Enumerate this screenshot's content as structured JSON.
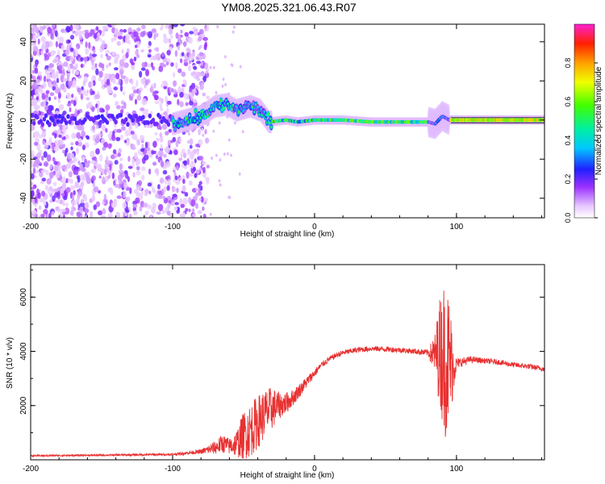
{
  "title": "YM08.2025.321.06.43.R07",
  "colors": {
    "snr_line": "#e83030",
    "axis": "#000000",
    "scatter": "#7d2ef0"
  },
  "chart_data": [
    {
      "type": "heatmap",
      "title": "YM08.2025.321.06.43.R07",
      "xlabel": "Height of straight line (km)",
      "ylabel": "Frequency (Hz)",
      "xlim": [
        -200,
        162
      ],
      "ylim": [
        -50,
        49
      ],
      "xticks": [
        -200,
        -100,
        0,
        100
      ],
      "xtick_labels": [
        "-200",
        "-100",
        "0",
        "100"
      ],
      "yticks": [
        -40,
        -20,
        0,
        20,
        40
      ],
      "ytick_labels": [
        "-40",
        "-20",
        "0",
        "20",
        "40"
      ],
      "colorbar": {
        "label": "Normalized spectral amplitude",
        "range": [
          0,
          1
        ],
        "ticks": [
          0.0,
          0.2,
          0.4,
          0.6,
          0.8
        ],
        "tick_labels": [
          "0.0",
          "0.2",
          "0.4",
          "0.6",
          "0.8"
        ]
      },
      "ridge": [
        {
          "x": -100,
          "f": -2
        },
        {
          "x": -90,
          "f": 0
        },
        {
          "x": -80,
          "f": 2
        },
        {
          "x": -70,
          "f": 7
        },
        {
          "x": -62,
          "f": 8
        },
        {
          "x": -55,
          "f": 5
        },
        {
          "x": -45,
          "f": 7
        },
        {
          "x": -38,
          "f": 5
        },
        {
          "x": -32,
          "f": -1
        },
        {
          "x": -20,
          "f": 0
        },
        {
          "x": -12,
          "f": -1
        },
        {
          "x": 0,
          "f": 0
        },
        {
          "x": 20,
          "f": 0
        },
        {
          "x": 40,
          "f": -1
        },
        {
          "x": 60,
          "f": -1
        },
        {
          "x": 80,
          "f": -1
        },
        {
          "x": 85,
          "f": -2
        },
        {
          "x": 90,
          "f": 2
        },
        {
          "x": 95,
          "f": 0
        },
        {
          "x": 120,
          "f": 0
        },
        {
          "x": 162,
          "f": 0
        }
      ]
    },
    {
      "type": "line",
      "xlabel": "Height of straight line (km)",
      "ylabel": "SNR (10 * v/v)",
      "xlim": [
        -200,
        162
      ],
      "ylim": [
        0,
        7200
      ],
      "xticks": [
        -200,
        -100,
        0,
        100
      ],
      "xtick_labels": [
        "-200",
        "-100",
        "0",
        "100"
      ],
      "yticks": [
        2000,
        4000,
        6000
      ],
      "ytick_labels": [
        "2000",
        "4000",
        "6000"
      ],
      "series": [
        {
          "name": "SNR",
          "x": [
            -200,
            -150,
            -100,
            -90,
            -80,
            -70,
            -65,
            -60,
            -55,
            -50,
            -45,
            -40,
            -35,
            -30,
            -25,
            -20,
            -15,
            -10,
            -5,
            0,
            5,
            10,
            15,
            20,
            25,
            30,
            40,
            50,
            60,
            70,
            80,
            85,
            88,
            92,
            95,
            98,
            100,
            110,
            120,
            130,
            140,
            150,
            162
          ],
          "values": [
            150,
            170,
            200,
            250,
            300,
            450,
            600,
            500,
            600,
            900,
            1100,
            1400,
            1700,
            1900,
            2000,
            2100,
            2300,
            2600,
            2900,
            3200,
            3500,
            3700,
            3850,
            3950,
            4000,
            4050,
            4100,
            4080,
            4050,
            4000,
            3950,
            3900,
            4000,
            3800,
            3600,
            3400,
            3550,
            3700,
            3650,
            3600,
            3500,
            3450,
            3350
          ],
          "noise": [
            30,
            30,
            40,
            60,
            80,
            250,
            350,
            300,
            500,
            900,
            1000,
            1000,
            900,
            800,
            500,
            400,
            300,
            250,
            200,
            150,
            120,
            100,
            100,
            100,
            100,
            100,
            100,
            100,
            100,
            100,
            120,
            800,
            2000,
            3000,
            2500,
            900,
            200,
            120,
            100,
            100,
            100,
            100,
            100
          ]
        }
      ]
    }
  ]
}
